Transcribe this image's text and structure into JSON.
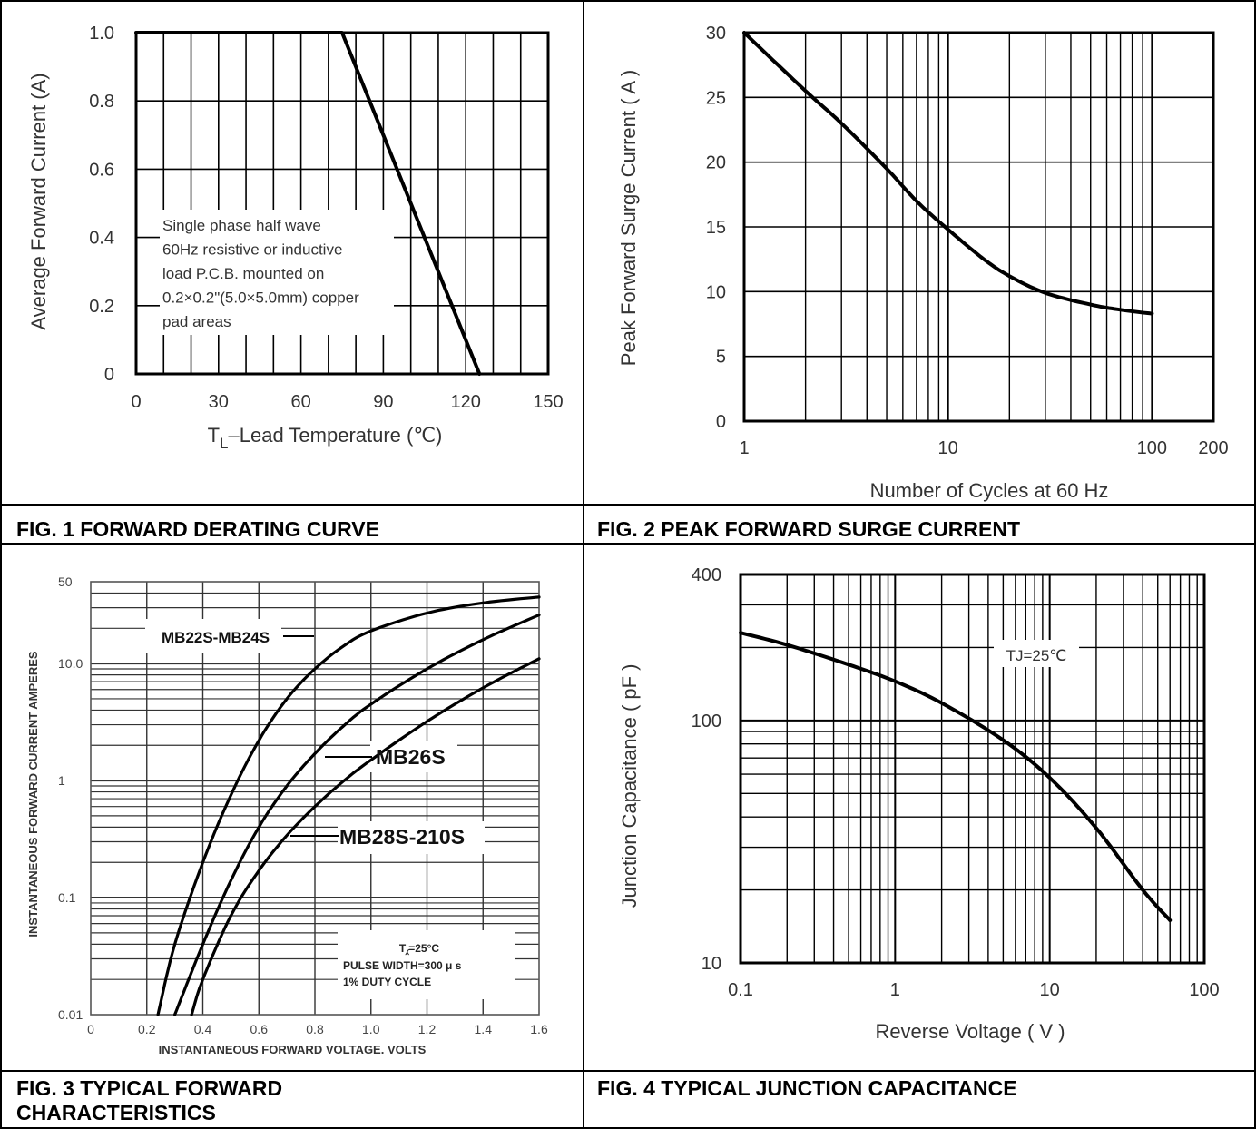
{
  "captions": {
    "fig1": "FIG. 1 FORWARD DERATING CURVE",
    "fig2": "FIG. 2 PEAK FORWARD SURGE CURRENT",
    "fig3_line1": "FIG. 3 TYPICAL FORWARD",
    "fig3_line2": "CHARACTERISTICS",
    "fig4": "FIG. 4 TYPICAL JUNCTION CAPACITANCE"
  },
  "chart_data": [
    {
      "type": "line",
      "xlabel_main": "T",
      "xlabel_sub": "L",
      "xlabel_rest": "–Lead Temperature (℃)",
      "ylabel": "Average Forward Current (A)",
      "xlim": [
        0,
        150
      ],
      "ylim": [
        0,
        1.0
      ],
      "x_ticks": [
        0,
        30,
        60,
        90,
        120,
        150
      ],
      "x_tick_labels": [
        "0",
        "30",
        "60",
        "90",
        "120",
        "150"
      ],
      "y_ticks": [
        0,
        0.2,
        0.4,
        0.6,
        0.8,
        1.0
      ],
      "y_tick_labels": [
        "0",
        "0.2",
        "0.4",
        "0.6",
        "0.8",
        "1.0"
      ],
      "series": [
        {
          "x": [
            0,
            75,
            125
          ],
          "y": [
            1.0,
            1.0,
            0
          ]
        }
      ],
      "annotation": [
        "Single phase half wave",
        "60Hz resistive or inductive",
        "load P.C.B. mounted on",
        "0.2×0.2\"(5.0×5.0mm) copper",
        "pad areas"
      ]
    },
    {
      "type": "line",
      "xscale": "log",
      "xlabel": "Number of Cycles at 60 Hz",
      "ylabel": "Peak Forward Surge Current ( A )",
      "xlim": [
        1,
        200
      ],
      "ylim": [
        0,
        30
      ],
      "x_tick_labels": [
        {
          "v": 1,
          "t": "1"
        },
        {
          "v": 10,
          "t": "10"
        },
        {
          "v": 100,
          "t": "100"
        },
        {
          "v": 200,
          "t": "200"
        }
      ],
      "y_tick_labels": [
        {
          "v": 0,
          "t": "0"
        },
        {
          "v": 5,
          "t": "5"
        },
        {
          "v": 10,
          "t": "10"
        },
        {
          "v": 15,
          "t": "15"
        },
        {
          "v": 20,
          "t": "20"
        },
        {
          "v": 25,
          "t": "25"
        },
        {
          "v": 30,
          "t": "30"
        }
      ],
      "series": [
        {
          "x": [
            1,
            2,
            3,
            5,
            7,
            10,
            15,
            20,
            30,
            50,
            70,
            100
          ],
          "y": [
            30,
            25.5,
            23,
            19.5,
            17,
            14.8,
            12.5,
            11.2,
            9.9,
            9,
            8.6,
            8.3
          ]
        }
      ]
    },
    {
      "type": "line",
      "yscale": "log",
      "xlabel": "INSTANTANEOUS FORWARD VOLTAGE. VOLTS",
      "ylabel": "INSTANTANEOUS FORWARD CURRENT AMPERES",
      "xlim": [
        0,
        1.6
      ],
      "ylim": [
        0.01,
        50
      ],
      "x_tick_labels": [
        "0",
        "0.2",
        "0.4",
        "0.6",
        "0.8",
        "1.0",
        "1.2",
        "1.4",
        "1.6"
      ],
      "y_tick_labels": [
        {
          "v": 50,
          "t": "50"
        },
        {
          "v": 10,
          "t": "10.0"
        },
        {
          "v": 1,
          "t": "1"
        },
        {
          "v": 0.1,
          "t": "0.1"
        },
        {
          "v": 0.01,
          "t": "0.01"
        }
      ],
      "series": [
        {
          "name": "MB22S-MB24S",
          "x": [
            0.24,
            0.3,
            0.4,
            0.5,
            0.6,
            0.7,
            0.8,
            0.9,
            1.0,
            1.2,
            1.4,
            1.6
          ],
          "y": [
            0.01,
            0.04,
            0.2,
            0.75,
            2.2,
            5,
            9,
            14,
            19,
            27,
            33,
            37
          ]
        },
        {
          "name": "MB26S",
          "x": [
            0.3,
            0.4,
            0.5,
            0.6,
            0.7,
            0.8,
            0.9,
            1.0,
            1.2,
            1.4,
            1.6
          ],
          "y": [
            0.01,
            0.04,
            0.14,
            0.4,
            0.9,
            1.7,
            2.9,
            4.5,
            9,
            16,
            26
          ]
        },
        {
          "name": "MB28S-210S",
          "x": [
            0.36,
            0.4,
            0.5,
            0.6,
            0.7,
            0.8,
            0.9,
            1.0,
            1.2,
            1.4,
            1.6
          ],
          "y": [
            0.01,
            0.02,
            0.07,
            0.17,
            0.34,
            0.6,
            0.98,
            1.5,
            3.2,
            6.2,
            11
          ]
        }
      ],
      "annotation": [
        "T⁁=25°C",
        "PULSE WIDTH=300 μ s",
        "1% DUTY CYCLE"
      ]
    },
    {
      "type": "line",
      "xscale": "log",
      "yscale": "log",
      "xlabel": "Reverse Voltage ( V )",
      "ylabel": "Junction Capacitance ( pF )",
      "xlim": [
        0.1,
        100
      ],
      "ylim": [
        10,
        400
      ],
      "x_tick_labels": [
        {
          "v": 0.1,
          "t": "0.1"
        },
        {
          "v": 1,
          "t": "1"
        },
        {
          "v": 10,
          "t": "10"
        },
        {
          "v": 100,
          "t": "100"
        }
      ],
      "y_tick_labels": [
        {
          "v": 10,
          "t": "10"
        },
        {
          "v": 100,
          "t": "100"
        },
        {
          "v": 400,
          "t": "400"
        }
      ],
      "series": [
        {
          "x": [
            0.1,
            0.2,
            0.5,
            1,
            2,
            5,
            10,
            20,
            40,
            60
          ],
          "y": [
            230,
            205,
            170,
            145,
            118,
            83,
            58,
            36,
            20,
            15
          ]
        }
      ],
      "annotation": "TJ=25℃"
    }
  ]
}
